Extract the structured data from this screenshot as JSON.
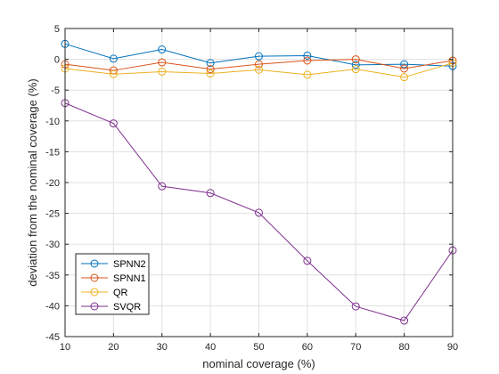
{
  "chart_data": {
    "type": "line",
    "title": "",
    "xlabel": "nominal coverage (%)",
    "ylabel": "deviation from the nominal coverage (%)",
    "x": [
      10,
      20,
      30,
      40,
      50,
      60,
      70,
      80,
      90
    ],
    "xlim": [
      10,
      90
    ],
    "ylim": [
      -45,
      5
    ],
    "xticks": [
      10,
      20,
      30,
      40,
      50,
      60,
      70,
      80,
      90
    ],
    "yticks": [
      5,
      0,
      -5,
      -10,
      -15,
      -20,
      -25,
      -30,
      -35,
      -40,
      -45
    ],
    "grid": true,
    "legend_position": "bottom-left",
    "marker": "circle",
    "series": [
      {
        "name": "SPNN2",
        "color": "#0072BD",
        "values": [
          2.5,
          0.1,
          1.6,
          -0.6,
          0.5,
          0.6,
          -0.9,
          -0.8,
          -1.1
        ]
      },
      {
        "name": "SPNN1",
        "color": "#D95319",
        "values": [
          -0.8,
          -1.8,
          -0.5,
          -1.6,
          -0.8,
          -0.2,
          0.0,
          -1.5,
          -0.2
        ]
      },
      {
        "name": "QR",
        "color": "#EDB120",
        "values": [
          -1.5,
          -2.4,
          -2.0,
          -2.3,
          -1.7,
          -2.5,
          -1.6,
          -2.9,
          -0.6
        ]
      },
      {
        "name": "SVQR",
        "color": "#7E2F8E",
        "values": [
          -7.1,
          -10.4,
          -20.6,
          -21.7,
          -24.9,
          -32.7,
          -40.1,
          -42.4,
          -31.0
        ]
      }
    ]
  }
}
